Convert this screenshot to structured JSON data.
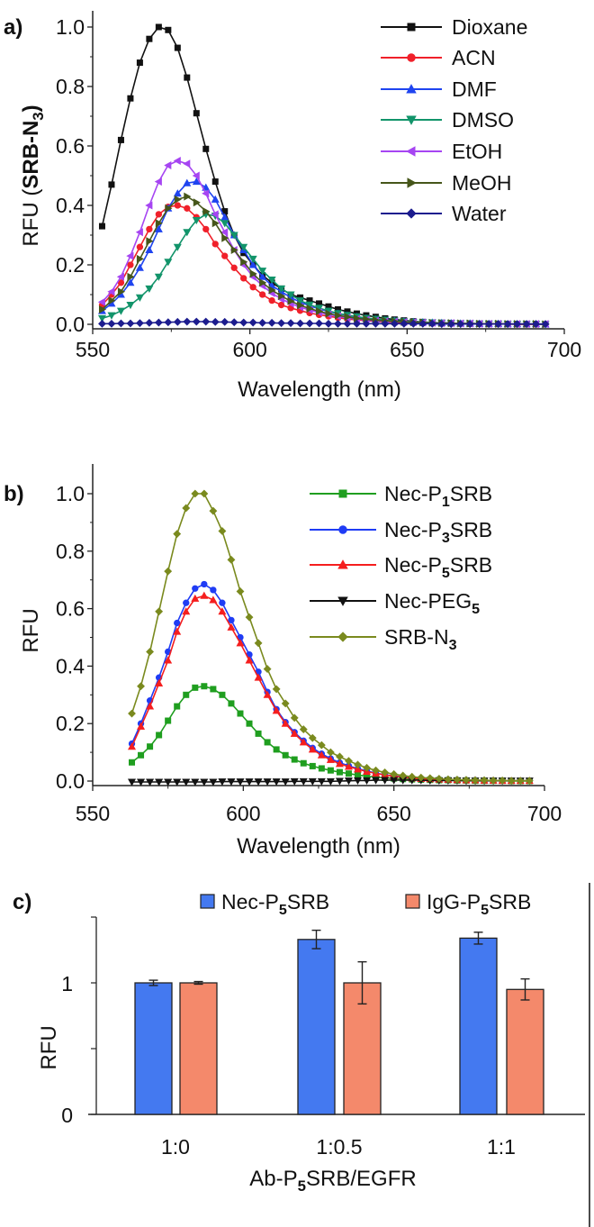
{
  "chart_data": [
    {
      "type": "line",
      "panel_label": "a)",
      "xlabel": "Wavelength (nm)",
      "ylabel_parts": [
        [
          "RFU (",
          ""
        ],
        [
          "SRB-N",
          "b"
        ],
        [
          "3",
          "bsub"
        ],
        [
          ")",
          "b"
        ]
      ],
      "xlim": [
        550,
        700
      ],
      "ylim": [
        0,
        1.0
      ],
      "xticks": [
        550,
        600,
        650,
        700
      ],
      "yticks": [
        "0.0",
        "0.2",
        "0.4",
        "0.6",
        "0.8",
        "1.0"
      ],
      "grid": false,
      "legend_position": "top-right",
      "x": {
        "start": 553,
        "step": 3,
        "count": 48
      },
      "series": [
        {
          "name": "Dioxane",
          "label_parts": [
            [
              "Dioxane",
              ""
            ]
          ],
          "color": "#111111",
          "marker": "square",
          "values": [
            0.33,
            0.47,
            0.62,
            0.76,
            0.88,
            0.96,
            1.0,
            0.99,
            0.93,
            0.83,
            0.71,
            0.59,
            0.48,
            0.38,
            0.3,
            0.24,
            0.2,
            0.165,
            0.14,
            0.12,
            0.1,
            0.09,
            0.08,
            0.07,
            0.06,
            0.05,
            0.043,
            0.036,
            0.03,
            0.025,
            0.02,
            0.016,
            0.013,
            0.01,
            0.008,
            0.006,
            0.005,
            0.004,
            0.003,
            0.002,
            0.002,
            0.001,
            0.001,
            0.001,
            0,
            0,
            0,
            0
          ]
        },
        {
          "name": "ACN",
          "label_parts": [
            [
              "ACN",
              ""
            ]
          ],
          "color": "#f0202a",
          "marker": "circle",
          "values": [
            0.065,
            0.1,
            0.14,
            0.2,
            0.26,
            0.32,
            0.37,
            0.395,
            0.4,
            0.39,
            0.36,
            0.32,
            0.27,
            0.23,
            0.19,
            0.155,
            0.125,
            0.1,
            0.08,
            0.065,
            0.055,
            0.046,
            0.038,
            0.032,
            0.027,
            0.022,
            0.018,
            0.015,
            0.012,
            0.01,
            0.008,
            0.007,
            0.006,
            0.005,
            0.004,
            0.003,
            0.003,
            0.002,
            0.002,
            0.002,
            0.001,
            0.001,
            0.001,
            0.001,
            0,
            0,
            0,
            0
          ]
        },
        {
          "name": "DMF",
          "label_parts": [
            [
              "DMF",
              ""
            ]
          ],
          "color": "#1f44f0",
          "marker": "triangle-up",
          "values": [
            0.045,
            0.07,
            0.1,
            0.14,
            0.19,
            0.25,
            0.32,
            0.39,
            0.44,
            0.475,
            0.48,
            0.46,
            0.42,
            0.36,
            0.3,
            0.25,
            0.2,
            0.16,
            0.13,
            0.11,
            0.09,
            0.075,
            0.062,
            0.052,
            0.043,
            0.036,
            0.03,
            0.025,
            0.02,
            0.017,
            0.014,
            0.012,
            0.01,
            0.008,
            0.007,
            0.006,
            0.005,
            0.004,
            0.003,
            0.003,
            0.002,
            0.002,
            0.002,
            0.001,
            0.001,
            0.001,
            0.001,
            0
          ]
        },
        {
          "name": "DMSO",
          "label_parts": [
            [
              "DMSO",
              ""
            ]
          ],
          "color": "#12946a",
          "marker": "triangle-down",
          "values": [
            0.02,
            0.03,
            0.045,
            0.065,
            0.09,
            0.12,
            0.16,
            0.21,
            0.26,
            0.31,
            0.35,
            0.37,
            0.365,
            0.34,
            0.3,
            0.26,
            0.22,
            0.18,
            0.15,
            0.12,
            0.1,
            0.08,
            0.066,
            0.055,
            0.045,
            0.037,
            0.031,
            0.026,
            0.021,
            0.018,
            0.015,
            0.012,
            0.01,
            0.008,
            0.007,
            0.006,
            0.005,
            0.004,
            0.003,
            0.003,
            0.002,
            0.002,
            0.002,
            0.001,
            0.001,
            0.001,
            0.001,
            0
          ]
        },
        {
          "name": "EtOH",
          "label_parts": [
            [
              "EtOH",
              ""
            ]
          ],
          "color": "#a645f2",
          "marker": "triangle-left",
          "values": [
            0.075,
            0.11,
            0.16,
            0.23,
            0.31,
            0.4,
            0.48,
            0.535,
            0.55,
            0.54,
            0.5,
            0.44,
            0.37,
            0.31,
            0.25,
            0.2,
            0.16,
            0.13,
            0.105,
            0.085,
            0.07,
            0.058,
            0.048,
            0.04,
            0.033,
            0.027,
            0.022,
            0.018,
            0.015,
            0.012,
            0.01,
            0.009,
            0.008,
            0.007,
            0.006,
            0.005,
            0.004,
            0.004,
            0.003,
            0.003,
            0.002,
            0.002,
            0.002,
            0.001,
            0.001,
            0.001,
            0.001,
            0.001
          ]
        },
        {
          "name": "MeOH",
          "label_parts": [
            [
              "MeOH",
              ""
            ]
          ],
          "color": "#46561a",
          "marker": "triangle-right",
          "values": [
            0.05,
            0.08,
            0.11,
            0.16,
            0.22,
            0.28,
            0.34,
            0.39,
            0.42,
            0.43,
            0.41,
            0.38,
            0.34,
            0.29,
            0.25,
            0.21,
            0.17,
            0.14,
            0.115,
            0.095,
            0.078,
            0.064,
            0.053,
            0.044,
            0.036,
            0.03,
            0.025,
            0.02,
            0.017,
            0.014,
            0.012,
            0.01,
            0.008,
            0.007,
            0.006,
            0.005,
            0.004,
            0.004,
            0.003,
            0.003,
            0.002,
            0.002,
            0.002,
            0.001,
            0.001,
            0.001,
            0.001,
            0
          ]
        },
        {
          "name": "Water",
          "label_parts": [
            [
              "Water",
              ""
            ]
          ],
          "color": "#1c1c8e",
          "marker": "diamond",
          "values": [
            0.002,
            0.002,
            0.003,
            0.003,
            0.004,
            0.005,
            0.006,
            0.007,
            0.008,
            0.009,
            0.009,
            0.009,
            0.008,
            0.008,
            0.007,
            0.006,
            0.006,
            0.005,
            0.005,
            0.004,
            0.004,
            0.003,
            0.003,
            0.003,
            0.002,
            0.002,
            0.002,
            0.002,
            0.002,
            0.002,
            0.002,
            0.002,
            0.002,
            0.002,
            0.002,
            0.002,
            0.001,
            0.001,
            0.001,
            0.001,
            0.001,
            0.001,
            0.001,
            0.001,
            0.001,
            0.001,
            0.001,
            0.001
          ]
        }
      ]
    },
    {
      "type": "line",
      "panel_label": "b)",
      "xlabel": "Wavelength (nm)",
      "ylabel_parts": [
        [
          "RFU",
          ""
        ]
      ],
      "xlim": [
        550,
        700
      ],
      "ylim": [
        0,
        1.0
      ],
      "xticks": [
        550,
        600,
        650,
        700
      ],
      "yticks": [
        "0.0",
        "0.2",
        "0.4",
        "0.6",
        "0.8",
        "1.0"
      ],
      "grid": false,
      "legend_position": "top-right",
      "x": {
        "start": 563,
        "step": 3,
        "count": 45
      },
      "series": [
        {
          "name": "Nec-P1SRB",
          "label_parts": [
            [
              "Nec-P",
              ""
            ],
            [
              "1",
              "sub"
            ],
            [
              "SRB",
              ""
            ]
          ],
          "color": "#1f9e1f",
          "marker": "square",
          "values": [
            0.065,
            0.09,
            0.12,
            0.16,
            0.21,
            0.26,
            0.3,
            0.325,
            0.33,
            0.32,
            0.3,
            0.27,
            0.235,
            0.2,
            0.165,
            0.135,
            0.11,
            0.09,
            0.075,
            0.062,
            0.052,
            0.044,
            0.037,
            0.031,
            0.026,
            0.021,
            0.017,
            0.014,
            0.011,
            0.009,
            0.007,
            0.006,
            0.005,
            0.004,
            0.003,
            0.003,
            0.002,
            0.002,
            0.001,
            0.001,
            0.001,
            0.001,
            0,
            0,
            0
          ]
        },
        {
          "name": "Nec-P3SRB",
          "label_parts": [
            [
              "Nec-P",
              ""
            ],
            [
              "3",
              "sub"
            ],
            [
              "SRB",
              ""
            ]
          ],
          "color": "#1f3cf5",
          "marker": "circle",
          "values": [
            0.13,
            0.2,
            0.28,
            0.36,
            0.45,
            0.55,
            0.62,
            0.67,
            0.685,
            0.665,
            0.62,
            0.56,
            0.5,
            0.44,
            0.38,
            0.31,
            0.25,
            0.205,
            0.17,
            0.14,
            0.115,
            0.095,
            0.078,
            0.064,
            0.053,
            0.043,
            0.035,
            0.028,
            0.022,
            0.018,
            0.014,
            0.011,
            0.009,
            0.007,
            0.006,
            0.005,
            0.004,
            0.003,
            0.003,
            0.002,
            0.002,
            0.001,
            0.001,
            0.001,
            0.001
          ]
        },
        {
          "name": "Nec-P5SRB",
          "label_parts": [
            [
              "Nec-P",
              ""
            ],
            [
              "5",
              "sub"
            ],
            [
              "SRB",
              ""
            ]
          ],
          "color": "#f51e1e",
          "marker": "triangle-up",
          "values": [
            0.12,
            0.19,
            0.26,
            0.34,
            0.42,
            0.52,
            0.59,
            0.635,
            0.645,
            0.63,
            0.59,
            0.535,
            0.48,
            0.42,
            0.36,
            0.3,
            0.245,
            0.2,
            0.165,
            0.135,
            0.11,
            0.09,
            0.074,
            0.06,
            0.05,
            0.041,
            0.033,
            0.027,
            0.021,
            0.017,
            0.013,
            0.01,
            0.008,
            0.007,
            0.006,
            0.005,
            0.004,
            0.003,
            0.003,
            0.002,
            0.002,
            0.001,
            0.001,
            0.001,
            0.001
          ]
        },
        {
          "name": "Nec-PEG5",
          "label_parts": [
            [
              "Nec-PEG",
              ""
            ],
            [
              "5",
              "sub"
            ]
          ],
          "color": "#111111",
          "marker": "triangle-down",
          "values": [
            -0.003,
            -0.003,
            -0.003,
            -0.003,
            -0.003,
            -0.003,
            -0.003,
            -0.003,
            -0.003,
            -0.003,
            -0.002,
            -0.002,
            -0.002,
            -0.002,
            -0.002,
            -0.002,
            -0.002,
            -0.002,
            -0.001,
            -0.001,
            -0.001,
            -0.001,
            -0.001,
            0,
            0.001,
            0.002,
            0.002,
            0.003,
            0.003,
            0.003,
            0.003,
            0.003,
            0.003,
            0.002,
            0.002,
            0.002,
            0.002,
            0.001,
            0.001,
            0.001,
            0.001,
            0.001,
            0.001,
            0.001,
            0.001
          ]
        },
        {
          "name": "SRB-N3",
          "label_parts": [
            [
              "SRB-N",
              ""
            ],
            [
              "3",
              "sub"
            ]
          ],
          "color": "#7a8a1e",
          "marker": "diamond",
          "values": [
            0.235,
            0.33,
            0.45,
            0.59,
            0.73,
            0.86,
            0.95,
            1.0,
            1.0,
            0.94,
            0.87,
            0.77,
            0.66,
            0.57,
            0.48,
            0.39,
            0.32,
            0.27,
            0.22,
            0.18,
            0.15,
            0.125,
            0.1,
            0.085,
            0.07,
            0.057,
            0.046,
            0.037,
            0.03,
            0.024,
            0.019,
            0.015,
            0.012,
            0.01,
            0.008,
            0.006,
            0.005,
            0.004,
            0.003,
            0.003,
            0.002,
            0.002,
            0.001,
            0.001,
            0.001
          ]
        }
      ]
    },
    {
      "type": "bar",
      "panel_label": "c)",
      "xlabel_parts": [
        [
          "Ab-P",
          ""
        ],
        [
          "5",
          "sub"
        ],
        [
          "SRB/EGFR",
          ""
        ]
      ],
      "ylabel_parts": [
        [
          "RFU",
          ""
        ]
      ],
      "ylim": [
        0,
        1.5
      ],
      "yticks": [
        0,
        0.5,
        1,
        1.5
      ],
      "ytick_labels": [
        "0",
        "",
        "1",
        ""
      ],
      "categories": [
        "1:0",
        "1:0.5",
        "1:1"
      ],
      "legend_position": "top",
      "series": [
        {
          "name": "Nec-P5SRB",
          "label_parts": [
            [
              "Nec-P",
              ""
            ],
            [
              "5",
              "sub"
            ],
            [
              "SRB",
              ""
            ]
          ],
          "color": "#4479f0",
          "values": [
            1.0,
            1.33,
            1.34
          ],
          "errors": [
            0.02,
            0.07,
            0.045
          ]
        },
        {
          "name": "IgG-P5SRB",
          "label_parts": [
            [
              "IgG-P",
              ""
            ],
            [
              "5",
              "sub"
            ],
            [
              "SRB",
              ""
            ]
          ],
          "color": "#f4896b",
          "values": [
            1.0,
            1.0,
            0.95
          ],
          "errors": [
            0.01,
            0.16,
            0.08
          ]
        }
      ]
    }
  ]
}
